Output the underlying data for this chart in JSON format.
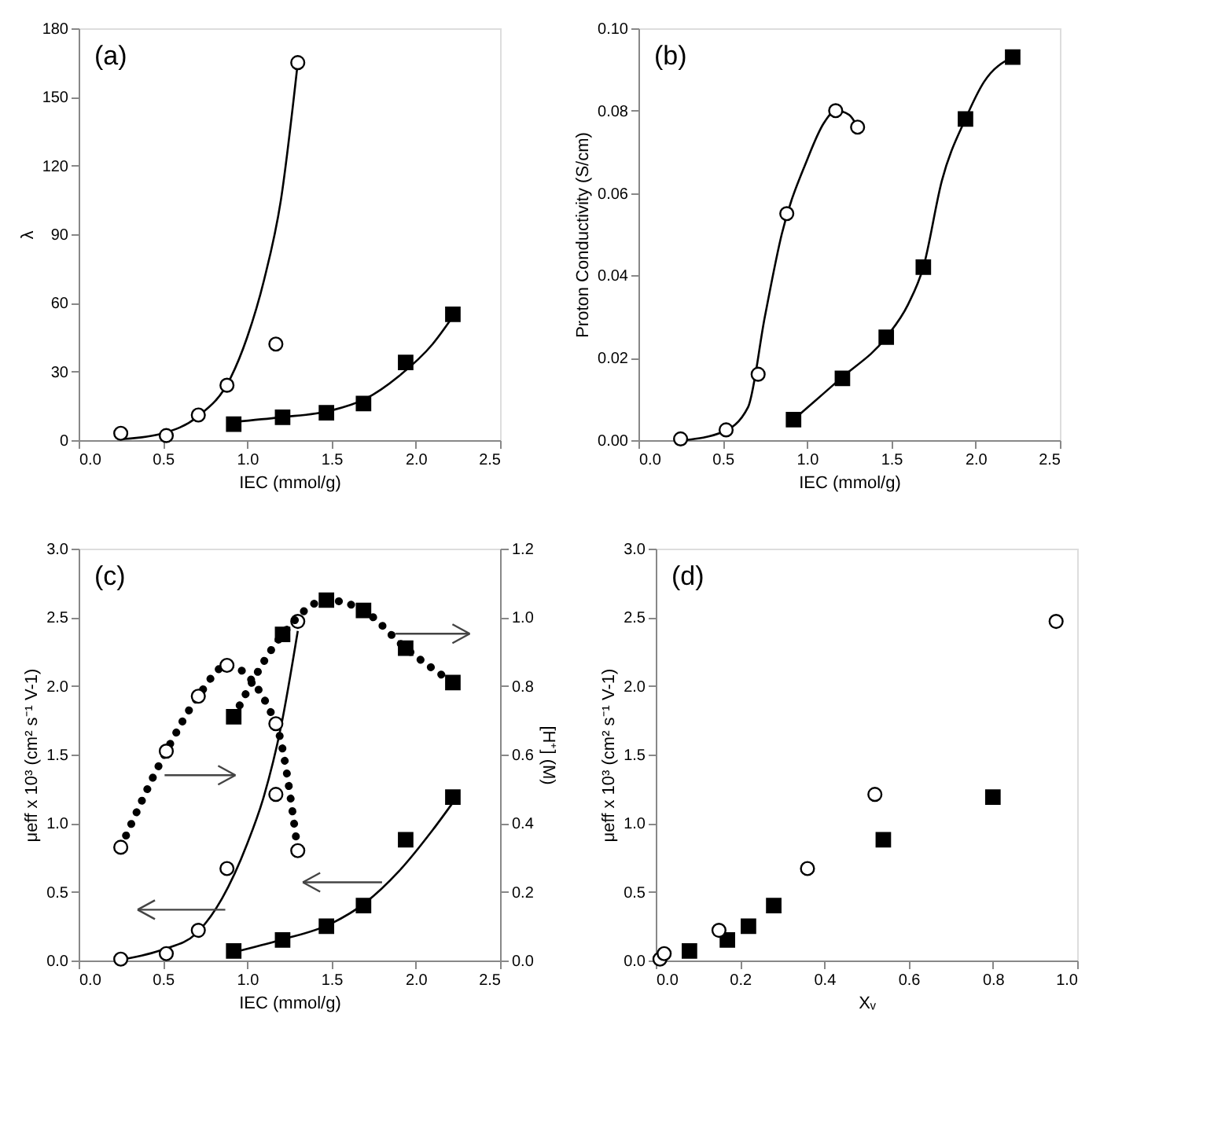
{
  "chart_data": [
    {
      "type": "scatter",
      "annotations": [
        "(a)"
      ],
      "xlabel": "IEC (mmol/g)",
      "ylabel": "λ",
      "grid": false,
      "xlim": [
        0,
        2.5
      ],
      "xticks": [
        {
          "value": 0,
          "label": "0.0"
        },
        0.5,
        {
          "value": 1,
          "label": "1.0"
        },
        1.5,
        {
          "value": 2,
          "label": "2.0"
        },
        2.5
      ],
      "ylim": [
        0,
        180
      ],
      "yticks": [
        0,
        30,
        60,
        90,
        120,
        150,
        180
      ],
      "series": [
        {
          "type": "line",
          "color": "#000000",
          "marker": "none",
          "line_style": "solid",
          "x": [
            0.27,
            0.5,
            0.7,
            0.9,
            1.0,
            1.1,
            1.2,
            1.3
          ],
          "values": [
            0.5,
            3,
            10,
            27,
            45,
            70,
            105,
            165
          ]
        },
        {
          "type": "line",
          "color": "#000000",
          "marker": "none",
          "line_style": "solid",
          "x": [
            0.92,
            1.2,
            1.5,
            1.7,
            1.9,
            2.1,
            2.22
          ],
          "values": [
            8,
            10,
            13,
            18,
            28,
            42,
            54
          ]
        },
        {
          "type": "scatter",
          "color": "#000000",
          "marker": "circle",
          "x": [
            0.25,
            0.52,
            0.71,
            0.88,
            1.17,
            1.3
          ],
          "values": [
            3,
            2,
            11,
            24,
            42,
            165
          ]
        },
        {
          "type": "scatter",
          "color": "#000000",
          "marker": "square",
          "x": [
            0.92,
            1.21,
            1.47,
            1.69,
            1.94,
            2.22
          ],
          "values": [
            7,
            10,
            12,
            16,
            34,
            55
          ]
        }
      ]
    },
    {
      "type": "scatter",
      "annotations": [
        "(b)"
      ],
      "xlabel": "IEC (mmol/g)",
      "ylabel": "Proton Conductivity (S/cm)",
      "grid": false,
      "xlim": [
        0,
        2.5
      ],
      "xticks": [
        {
          "value": 0,
          "label": "0.0"
        },
        0.5,
        {
          "value": 1,
          "label": "1.0"
        },
        1.5,
        {
          "value": 2,
          "label": "2.0"
        },
        2.5
      ],
      "ylim": [
        0,
        0.1
      ],
      "yticks": [
        {
          "value": 0,
          "label": "0.00"
        },
        0.02,
        0.04,
        0.06,
        0.08,
        {
          "value": 0.1,
          "label": "0.10"
        }
      ],
      "series": [
        {
          "type": "line",
          "color": "#000000",
          "marker": "none",
          "line_style": "solid",
          "x": [
            0.27,
            0.5,
            0.65,
            0.75,
            0.85,
            1.0,
            1.1,
            1.17,
            1.25,
            1.3
          ],
          "values": [
            0,
            0.002,
            0.008,
            0.03,
            0.05,
            0.068,
            0.077,
            0.08,
            0.079,
            0.076
          ]
        },
        {
          "type": "line",
          "color": "#000000",
          "marker": "none",
          "line_style": "solid",
          "x": [
            0.92,
            1.2,
            1.47,
            1.6,
            1.69,
            1.8,
            1.94,
            2.05,
            2.22
          ],
          "values": [
            0.005,
            0.015,
            0.025,
            0.033,
            0.042,
            0.063,
            0.078,
            0.087,
            0.093
          ]
        },
        {
          "type": "scatter",
          "color": "#000000",
          "marker": "circle",
          "x": [
            0.25,
            0.52,
            0.71,
            0.88,
            1.17,
            1.3
          ],
          "values": [
            0.0003,
            0.0025,
            0.016,
            0.055,
            0.08,
            0.076
          ]
        },
        {
          "type": "scatter",
          "color": "#000000",
          "marker": "square",
          "x": [
            0.92,
            1.21,
            1.47,
            1.69,
            1.94,
            2.22
          ],
          "values": [
            0.005,
            0.015,
            0.025,
            0.042,
            0.078,
            0.093
          ]
        }
      ]
    },
    {
      "type": "scatter",
      "annotations": [
        "(c)"
      ],
      "xlabel": "IEC (mmol/g)",
      "ylabel": "μeff x 10³ (cm² s⁻¹ V-1)",
      "y2label": "[H⁺] (M)",
      "grid": false,
      "xlim": [
        0,
        2.5
      ],
      "xticks": [
        {
          "value": 0,
          "label": "0.0"
        },
        0.5,
        {
          "value": 1,
          "label": "1.0"
        },
        1.5,
        {
          "value": 2,
          "label": "2.0"
        },
        2.5
      ],
      "ylim": [
        0,
        3
      ],
      "yticks": [
        {
          "value": 0,
          "label": "0.0"
        },
        0.5,
        {
          "value": 1,
          "label": "1.0"
        },
        1.5,
        {
          "value": 2,
          "label": "2.0"
        },
        2.5,
        {
          "value": 3,
          "label": "3.0"
        }
      ],
      "y2lim": [
        0,
        1.2
      ],
      "y2ticks": [
        {
          "value": 0,
          "label": "0.0"
        },
        0.2,
        0.4,
        0.6,
        0.8,
        {
          "value": 1,
          "label": "1.0"
        },
        1.2
      ],
      "series": [
        {
          "type": "line",
          "color": "#000000",
          "marker": "none",
          "line_style": "solid",
          "x": [
            0.27,
            0.5,
            0.7,
            0.85,
            1.0,
            1.1,
            1.2,
            1.3
          ],
          "values": [
            0.01,
            0.08,
            0.2,
            0.45,
            0.85,
            1.2,
            1.7,
            2.4
          ]
        },
        {
          "type": "line",
          "color": "#000000",
          "marker": "none",
          "line_style": "solid",
          "x": [
            0.92,
            1.2,
            1.5,
            1.7,
            1.9,
            2.1,
            2.22
          ],
          "values": [
            0.06,
            0.15,
            0.27,
            0.42,
            0.65,
            0.95,
            1.15
          ]
        },
        {
          "type": "line",
          "axis": "y2",
          "color": "#000000",
          "marker": "circle",
          "line_style": "dotted",
          "x": [
            0.25,
            0.52,
            0.71,
            0.88,
            1.17,
            1.3
          ],
          "values": [
            0.33,
            0.61,
            0.77,
            0.86,
            0.69,
            0.32
          ]
        },
        {
          "type": "line",
          "axis": "y2",
          "color": "#000000",
          "marker": "square",
          "line_style": "dotted",
          "x": [
            0.92,
            1.21,
            1.47,
            1.69,
            1.94,
            2.22
          ],
          "values": [
            0.71,
            0.95,
            1.05,
            1.02,
            0.91,
            0.81
          ]
        },
        {
          "type": "scatter",
          "color": "#000000",
          "marker": "circle",
          "x": [
            0.25,
            0.52,
            0.71,
            0.88,
            1.17,
            1.3
          ],
          "values": [
            0.01,
            0.05,
            0.22,
            0.67,
            1.21,
            2.47
          ]
        },
        {
          "type": "scatter",
          "color": "#000000",
          "marker": "square",
          "x": [
            0.92,
            1.21,
            1.47,
            1.69,
            1.94,
            2.22
          ],
          "values": [
            0.07,
            0.15,
            0.25,
            0.4,
            0.88,
            1.19
          ]
        }
      ]
    },
    {
      "type": "scatter",
      "annotations": [
        "(d)"
      ],
      "xlabel": "Xᵥ",
      "ylabel": "μeff x 10³ (cm² s⁻¹ V-1)",
      "grid": false,
      "xlim": [
        0,
        1
      ],
      "xticks": [
        {
          "value": 0,
          "label": "0.0"
        },
        0.2,
        0.4,
        0.6,
        0.8,
        {
          "value": 1,
          "label": "1.0"
        }
      ],
      "ylim": [
        0,
        3
      ],
      "yticks": [
        {
          "value": 0,
          "label": "0.0"
        },
        0.5,
        {
          "value": 1,
          "label": "1.0"
        },
        1.5,
        {
          "value": 2,
          "label": "2.0"
        },
        2.5,
        {
          "value": 3,
          "label": "3.0"
        }
      ],
      "series": [
        {
          "type": "scatter",
          "color": "#000000",
          "marker": "circle",
          "x": [
            0.01,
            0.02,
            0.15,
            0.36,
            0.52,
            0.95
          ],
          "values": [
            0.01,
            0.05,
            0.22,
            0.67,
            1.21,
            2.47
          ]
        },
        {
          "type": "scatter",
          "color": "#000000",
          "marker": "square",
          "x": [
            0.08,
            0.17,
            0.22,
            0.28,
            0.54,
            0.8
          ],
          "values": [
            0.07,
            0.15,
            0.25,
            0.4,
            0.88,
            1.19
          ]
        }
      ]
    }
  ]
}
